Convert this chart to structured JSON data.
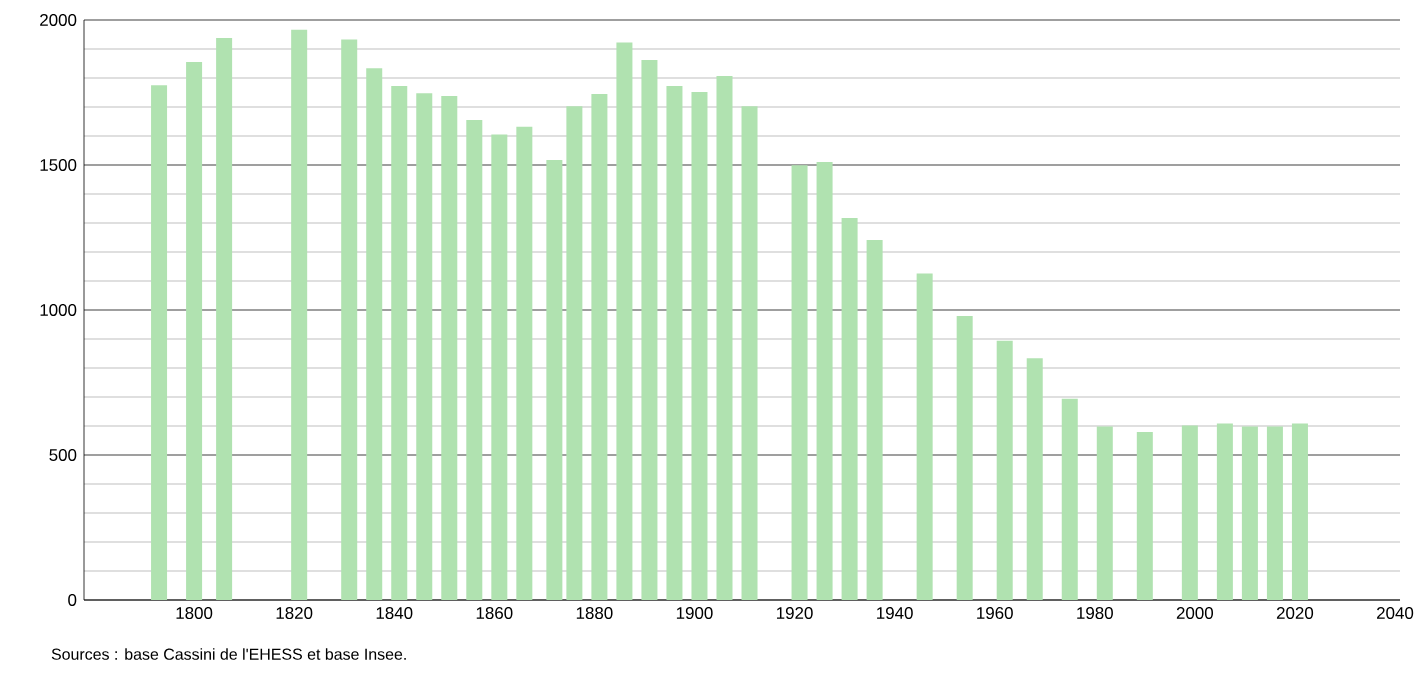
{
  "chart_data": {
    "type": "bar",
    "color": "#b0e2b0",
    "x": [
      1793,
      1800,
      1806,
      1821,
      1831,
      1836,
      1841,
      1846,
      1851,
      1856,
      1861,
      1866,
      1872,
      1876,
      1881,
      1886,
      1891,
      1896,
      1901,
      1906,
      1911,
      1921,
      1926,
      1931,
      1936,
      1946,
      1954,
      1962,
      1968,
      1975,
      1982,
      1990,
      1999,
      2006,
      2011,
      2016,
      2021
    ],
    "values": [
      1775,
      1855,
      1938,
      1966,
      1933,
      1834,
      1772,
      1747,
      1738,
      1655,
      1605,
      1632,
      1517,
      1703,
      1745,
      1922,
      1862,
      1772,
      1752,
      1807,
      1703,
      1499,
      1510,
      1317,
      1241,
      1126,
      979,
      894,
      834,
      694,
      598,
      579,
      602,
      609,
      598,
      598,
      609
    ],
    "xlim": [
      1778,
      2041
    ],
    "ylim": [
      0,
      2000
    ],
    "xticks": [
      1800,
      1820,
      1840,
      1860,
      1880,
      1900,
      1920,
      1940,
      1960,
      1980,
      2000,
      2020,
      2040
    ],
    "yticks": [
      0,
      500,
      1000,
      1500,
      2000
    ],
    "grid": "y",
    "annotations": [
      "Sources : base Cassini de l'EHESS et base Insee."
    ]
  }
}
